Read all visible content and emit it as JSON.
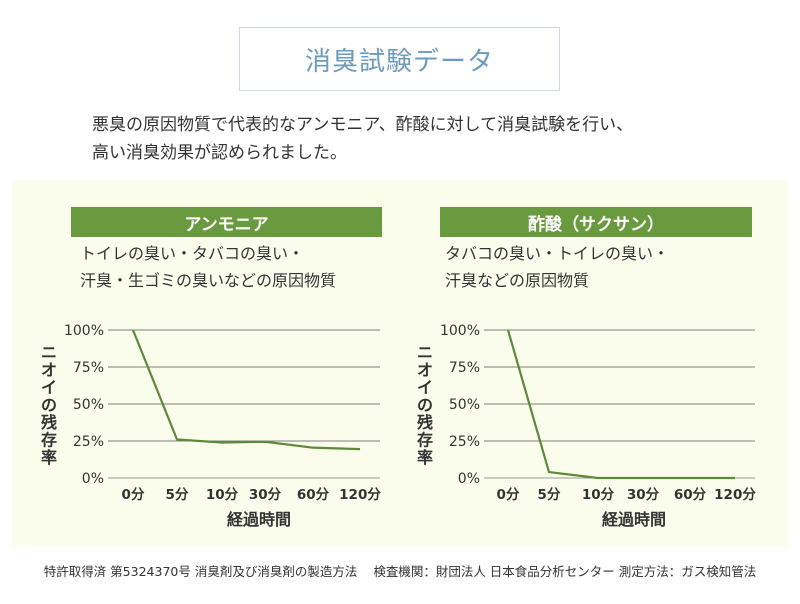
{
  "title": "消臭試験データ",
  "intro": {
    "line1": "悪臭の原因物質で代表的なアンモニア、酢酸に対して消臭試験を行い、",
    "line2": "高い消臭効果が認められました。"
  },
  "cards": [
    {
      "header": "アンモニア",
      "desc_line1": "トイレの臭い・タバコの臭い・",
      "desc_line2": "汗臭・生ゴミの臭いなどの原因物質"
    },
    {
      "header": "酢酸（サクサン）",
      "desc_line1": "タバコの臭い・トイレの臭い・",
      "desc_line2": "汗臭などの原因物質"
    }
  ],
  "footer": {
    "patent": "特許取得済 第5324370号 消臭剤及び消臭剤の製造方法",
    "lab": "検査機関：財団法人 日本食品分析センター 測定方法：ガス検知管法"
  },
  "colors": {
    "accent_green": "#6a9a3f",
    "line_green": "#5d8a3a",
    "panel_bg": "#fbfdec",
    "title_blue": "#6c9bc0"
  },
  "chart_data": [
    {
      "type": "line",
      "categories": [
        "0分",
        "5分",
        "10分",
        "30分",
        "60分",
        "120分"
      ],
      "series": [
        {
          "values": [
            100,
            26,
            24,
            24.5,
            20.5,
            19.5
          ]
        }
      ],
      "ylabel": "ニオイの残存率",
      "xlabel": "経過時間",
      "yticks": [
        "0%",
        "25%",
        "50%",
        "75%",
        "100%"
      ],
      "ylim": [
        0,
        100
      ],
      "grid": true
    },
    {
      "type": "line",
      "categories": [
        "0分",
        "5分",
        "10分",
        "30分",
        "60分",
        "120分"
      ],
      "series": [
        {
          "values": [
            100,
            4,
            0,
            0,
            0,
            0
          ]
        }
      ],
      "ylabel": "ニオイの残存率",
      "xlabel": "経過時間",
      "yticks": [
        "0%",
        "25%",
        "50%",
        "75%",
        "100%"
      ],
      "ylim": [
        0,
        100
      ],
      "grid": true
    }
  ]
}
